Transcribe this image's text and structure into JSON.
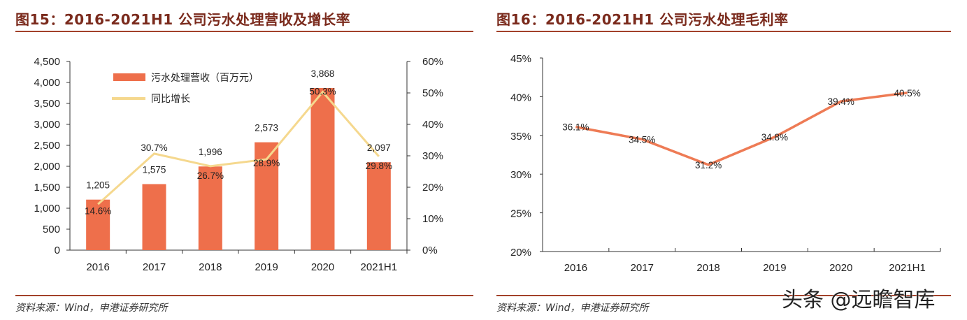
{
  "left": {
    "title": "图15：2016-2021H1 公司污水处理营收及增长率",
    "source": "资料来源：Wind，申港证券研究所"
  },
  "right": {
    "title": "图16：2016-2021H1 公司污水处理毛利率",
    "source": "资料来源：Wind，申港证券研究所"
  },
  "watermark": "头条 @远瞻智库",
  "colors": {
    "bar": "#ee6f4b",
    "growth_line": "#f5d88e",
    "margin_line": "#ee7b55",
    "title": "#7a2a1c"
  },
  "chart_data": [
    {
      "type": "bar",
      "title": "图15：2016-2021H1 公司污水处理营收及增长率",
      "categories": [
        "2016",
        "2017",
        "2018",
        "2019",
        "2020",
        "2021H1"
      ],
      "series": [
        {
          "name": "污水处理营收（百万元）",
          "type": "bar",
          "axis": "left",
          "values": [
            1205,
            1575,
            1996,
            2573,
            3868,
            2097
          ],
          "labels": [
            "1,205",
            "1,575",
            "1,996",
            "2,573",
            "3,868",
            "2,097"
          ]
        },
        {
          "name": "同比增长",
          "type": "line",
          "axis": "right",
          "values": [
            14.6,
            30.7,
            26.7,
            28.9,
            50.3,
            29.8
          ],
          "labels": [
            "14.6%",
            "30.7%",
            "26.7%",
            "28.9%",
            "50.3%",
            "29.8%"
          ]
        }
      ],
      "ylim": [
        0,
        4500
      ],
      "yticks": [
        "0",
        "500",
        "1,000",
        "1,500",
        "2,000",
        "2,500",
        "3,000",
        "3,500",
        "4,000",
        "4,500"
      ],
      "y2lim": [
        0,
        60
      ],
      "y2ticks": [
        "0%",
        "10%",
        "20%",
        "30%",
        "40%",
        "50%",
        "60%"
      ],
      "legend": "top-left"
    },
    {
      "type": "line",
      "title": "图16：2016-2021H1 公司污水处理毛利率",
      "categories": [
        "2016",
        "2017",
        "2018",
        "2019",
        "2020",
        "2021H1"
      ],
      "series": [
        {
          "name": "毛利率",
          "values": [
            36.1,
            34.5,
            31.2,
            34.8,
            39.4,
            40.5
          ],
          "labels": [
            "36.1%",
            "34.5%",
            "31.2%",
            "34.8%",
            "39.4%",
            "40.5%"
          ]
        }
      ],
      "ylim": [
        20,
        45
      ],
      "yticks": [
        "20%",
        "25%",
        "30%",
        "35%",
        "40%",
        "45%"
      ]
    }
  ]
}
